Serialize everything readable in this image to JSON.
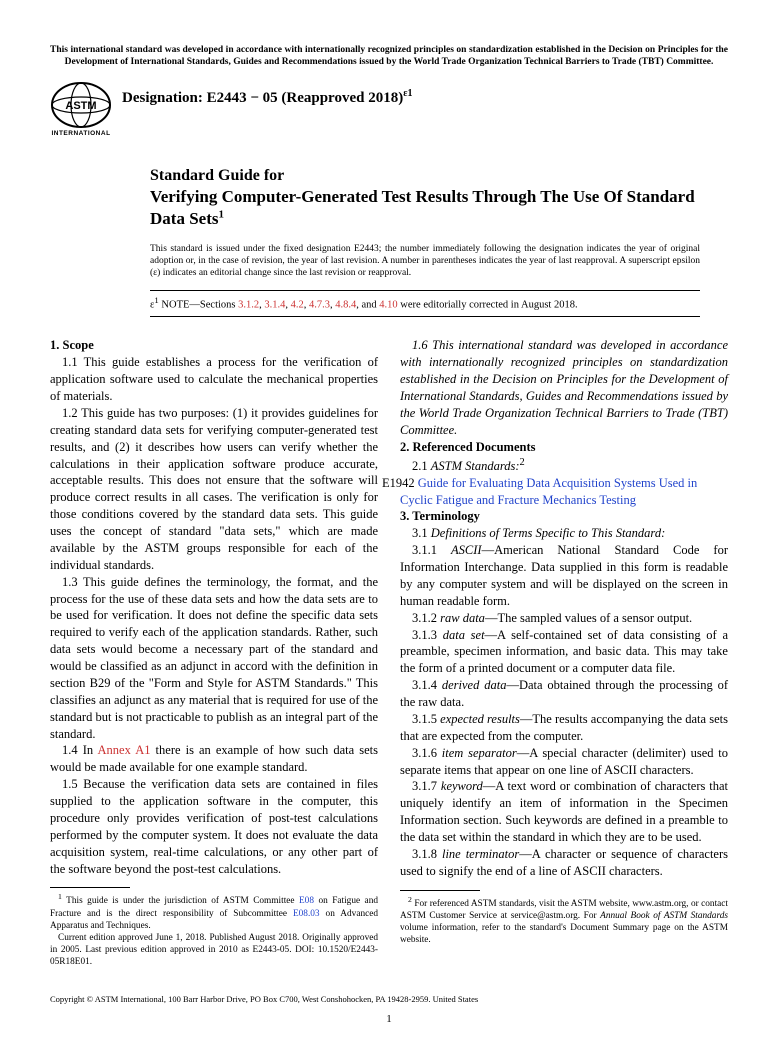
{
  "top_notice": "This international standard was developed in accordance with internationally recognized principles on standardization established in the Decision on Principles for the Development of International Standards, Guides and Recommendations issued by the World Trade Organization Technical Barriers to Trade (TBT) Committee.",
  "designation_label": "Designation: E2443 − 05 (Reapproved 2018)",
  "designation_sup": "ε1",
  "title_pre": "Standard Guide for",
  "title_main": "Verifying Computer-Generated Test Results Through The Use Of Standard Data Sets",
  "title_sup": "1",
  "issuance": "This standard is issued under the fixed designation E2443; the number immediately following the designation indicates the year of original adoption or, in the case of revision, the year of last revision. A number in parentheses indicates the year of last reapproval. A superscript epsilon (ε) indicates an editorial change since the last revision or reapproval.",
  "eps_prefix": "ε",
  "eps_sup": "1",
  "eps_note_lead": " NOTE—Sections ",
  "eps_links": [
    "3.1.2",
    "3.1.4",
    "4.2",
    "4.7.3",
    "4.8.4"
  ],
  "eps_and": ", and ",
  "eps_last": "4.10",
  "eps_tail": " were editorially corrected in August 2018.",
  "s1_head": "1. Scope",
  "s1_1": "1.1 This guide establishes a process for the verification of application software used to calculate the mechanical properties of materials.",
  "s1_2": "1.2 This guide has two purposes: (1) it provides guidelines for creating standard data sets for verifying computer-generated test results, and (2) it describes how users can verify whether the calculations in their application software produce accurate, acceptable results. This does not ensure that the software will produce correct results in all cases. The verification is only for those conditions covered by the standard data sets. This guide uses the concept of standard \"data sets,\" which are made available by the ASTM groups responsible for each of the individual standards.",
  "s1_3": "1.3 This guide defines the terminology, the format, and the process for the use of these data sets and how the data sets are to be used for verification. It does not define the specific data sets required to verify each of the application standards. Rather, such data sets would become a necessary part of the standard and would be classified as an adjunct in accord with the definition in section B29 of the \"Form and Style for ASTM Standards.\" This classifies an adjunct as any material that is required for use of the standard but is not practicable to publish as an integral part of the standard.",
  "s1_4a": "1.4 In ",
  "s1_4_link": "Annex A1",
  "s1_4b": " there is an example of how such data sets would be made available for one example standard.",
  "s1_5": "1.5 Because the verification data sets are contained in files supplied to the application software in the computer, this procedure only provides verification of post-test calculations performed by the computer system. It does not evaluate the data acquisition system, real-time calculations, or any other part of the software beyond the post-test calculations.",
  "s1_6": "1.6 This international standard was developed in accordance with internationally recognized principles on standardization established in the Decision on Principles for the Development of International Standards, Guides and Recommendations issued by the World Trade Organization Technical Barriers to Trade (TBT) Committee.",
  "s2_head": "2. Referenced Documents",
  "s2_1a": "2.1 ",
  "s2_1b": "ASTM Standards:",
  "s2_1sup": "2",
  "s2_ref_code": "E1942 ",
  "s2_ref_title": "Guide for Evaluating Data Acquisition Systems Used in Cyclic Fatigue and Fracture Mechanics Testing",
  "s3_head": "3. Terminology",
  "s3_1a": "3.1 ",
  "s3_1b": "Definitions of Terms Specific to This Standard:",
  "t311a": "3.1.1 ",
  "t311term": "ASCII",
  "t311b": "—American National Standard Code for Information Interchange. Data supplied in this form is readable by any computer system and will be displayed on the screen in human readable form.",
  "t312a": "3.1.2 ",
  "t312term": "raw data",
  "t312b": "—The sampled values of a sensor output.",
  "t313a": "3.1.3 ",
  "t313term": "data set",
  "t313b": "—A self-contained set of data consisting of a preamble, specimen information, and basic data. This may take the form of a printed document or a computer data file.",
  "t314a": "3.1.4 ",
  "t314term": "derived data",
  "t314b": "—Data obtained through the processing of the raw data.",
  "t315a": "3.1.5 ",
  "t315term": "expected results",
  "t315b": "—The results accompanying the data sets that are expected from the computer.",
  "t316a": "3.1.6 ",
  "t316term": "item separator",
  "t316b": "—A special character (delimiter) used to separate items that appear on one line of ASCII characters.",
  "t317a": "3.1.7 ",
  "t317term": "keyword",
  "t317b": "—A text word or combination of characters that uniquely identify an item of information in the Specimen Information section. Such keywords are defined in a preamble to the data set within the standard in which they are to be used.",
  "t318a": "3.1.8 ",
  "t318term": "line terminator",
  "t318b": "—A character or sequence of characters used to signify the end of a line of ASCII characters.",
  "fn1a": " This guide is under the jurisdiction of ASTM Committee ",
  "fn1_link1": "E08",
  "fn1b": " on Fatigue and Fracture and is the direct responsibility of Subcommittee ",
  "fn1_link2": "E08.03",
  "fn1c": " on Advanced Apparatus and Techniques.",
  "fn1d": "Current edition approved June 1, 2018. Published August 2018. Originally approved in 2005. Last previous edition approved in 2010 as E2443-05. DOI: 10.1520/E2443-05R18E01.",
  "fn2a": " For referenced ASTM standards, visit the ASTM website, www.astm.org, or contact ASTM Customer Service at service@astm.org. For ",
  "fn2b": "Annual Book of ASTM Standards",
  "fn2c": " volume information, refer to the standard's Document Summary page on the ASTM website.",
  "copyright": "Copyright © ASTM International, 100 Barr Harbor Drive, PO Box C700, West Conshohocken, PA 19428-2959. United States",
  "pagenum": "1"
}
